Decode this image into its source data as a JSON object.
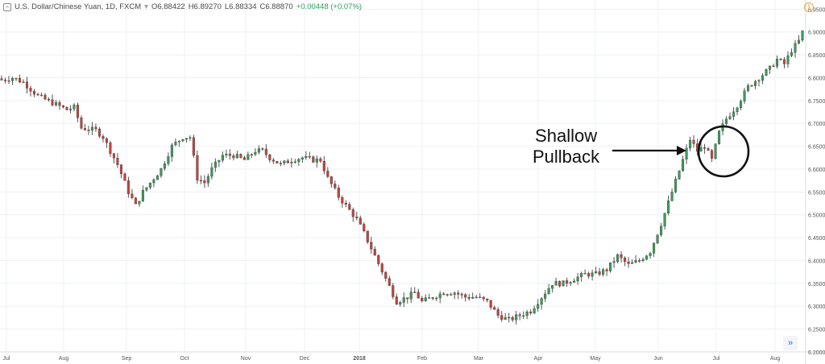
{
  "header": {
    "symbol": "U.S. Dollar/Chinese Yuan, 1D, FXCM",
    "open": "O6.88422",
    "high": "H6.89270",
    "low": "L6.88334",
    "close": "C6.88870",
    "change": "+0.00448 (+0.07%)"
  },
  "annotation": {
    "line1": "Shallow",
    "line2": "Pullback"
  },
  "colors": {
    "up": "#3d9a5a",
    "down": "#c8413a",
    "wick": "#555555",
    "grid": "#eef0f3"
  },
  "icons": {
    "collapse": "collapse-icon",
    "alert": "alert-icon",
    "scroll": "double-chevron-right-icon"
  },
  "chart_data": {
    "type": "candlestick",
    "x_tick_labels": [
      "Jul",
      "Aug",
      "Sep",
      "Oct",
      "Nov",
      "Dec",
      "2018",
      "Feb",
      "Mar",
      "Apr",
      "May",
      "Jun",
      "Jul",
      "Aug"
    ],
    "y_tick_labels": [
      "6.95000",
      "6.90000",
      "6.85000",
      "6.80000",
      "6.75000",
      "6.70000",
      "6.65000",
      "6.60000",
      "6.55000",
      "6.50000",
      "6.45000",
      "6.40000",
      "6.35000",
      "6.30000",
      "6.25000",
      "6.20000"
    ],
    "ylim": [
      6.2,
      6.97
    ],
    "close_path": [
      [
        0,
        6.795
      ],
      [
        3,
        6.8
      ],
      [
        6,
        6.79
      ],
      [
        10,
        6.76
      ],
      [
        14,
        6.745
      ],
      [
        18,
        6.73
      ],
      [
        20,
        6.735
      ],
      [
        22,
        6.69
      ],
      [
        26,
        6.685
      ],
      [
        28,
        6.67
      ],
      [
        32,
        6.61
      ],
      [
        35,
        6.55
      ],
      [
        37,
        6.52
      ],
      [
        39,
        6.55
      ],
      [
        41,
        6.57
      ],
      [
        44,
        6.6
      ],
      [
        47,
        6.65
      ],
      [
        50,
        6.67
      ],
      [
        52,
        6.67
      ],
      [
        54,
        6.58
      ],
      [
        56,
        6.57
      ],
      [
        58,
        6.6
      ],
      [
        61,
        6.63
      ],
      [
        64,
        6.63
      ],
      [
        67,
        6.62
      ],
      [
        70,
        6.64
      ],
      [
        72,
        6.64
      ],
      [
        74,
        6.625
      ],
      [
        77,
        6.61
      ],
      [
        80,
        6.62
      ],
      [
        83,
        6.625
      ],
      [
        86,
        6.62
      ],
      [
        88,
        6.62
      ],
      [
        90,
        6.58
      ],
      [
        93,
        6.54
      ],
      [
        96,
        6.51
      ],
      [
        98,
        6.49
      ],
      [
        100,
        6.46
      ],
      [
        103,
        6.41
      ],
      [
        106,
        6.36
      ],
      [
        109,
        6.31
      ],
      [
        112,
        6.32
      ],
      [
        114,
        6.33
      ],
      [
        116,
        6.31
      ],
      [
        119,
        6.32
      ],
      [
        122,
        6.33
      ],
      [
        125,
        6.33
      ],
      [
        128,
        6.32
      ],
      [
        131,
        6.32
      ],
      [
        134,
        6.31
      ],
      [
        137,
        6.28
      ],
      [
        140,
        6.27
      ],
      [
        143,
        6.28
      ],
      [
        146,
        6.29
      ],
      [
        149,
        6.32
      ],
      [
        152,
        6.35
      ],
      [
        155,
        6.35
      ],
      [
        158,
        6.36
      ],
      [
        161,
        6.37
      ],
      [
        164,
        6.37
      ],
      [
        167,
        6.38
      ],
      [
        170,
        6.41
      ],
      [
        173,
        6.39
      ],
      [
        176,
        6.4
      ],
      [
        179,
        6.42
      ],
      [
        182,
        6.48
      ],
      [
        185,
        6.55
      ],
      [
        188,
        6.62
      ],
      [
        190,
        6.665
      ],
      [
        192,
        6.64
      ],
      [
        194,
        6.65
      ],
      [
        196,
        6.62
      ],
      [
        198,
        6.68
      ],
      [
        200,
        6.71
      ],
      [
        203,
        6.74
      ],
      [
        206,
        6.78
      ],
      [
        209,
        6.8
      ],
      [
        212,
        6.82
      ],
      [
        214,
        6.84
      ],
      [
        216,
        6.83
      ],
      [
        218,
        6.86
      ],
      [
        220,
        6.88
      ],
      [
        221,
        6.9
      ]
    ]
  }
}
